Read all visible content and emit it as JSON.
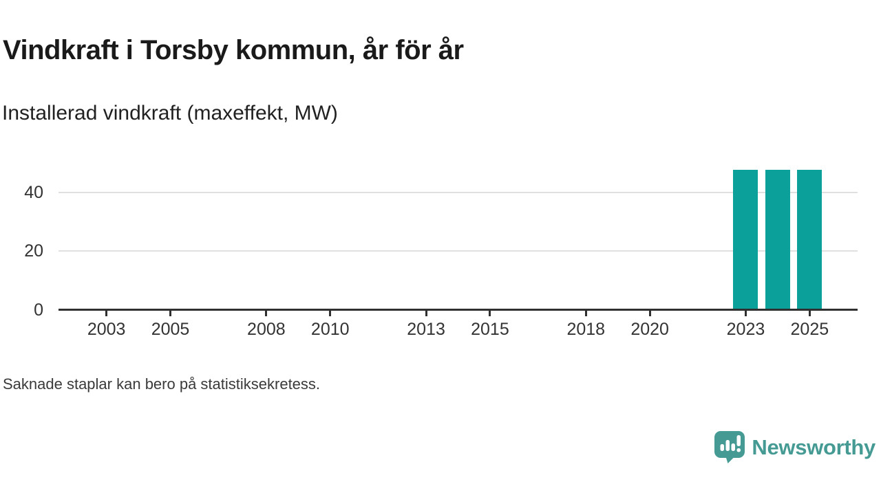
{
  "header": {
    "title": "Vindkraft i Torsby kommun, år för år",
    "subtitle": "Installerad vindkraft (maxeffekt, MW)"
  },
  "footer": {
    "note": "Saknade staplar kan bero på statistiksekretess.",
    "brand_name": "Newsworthy"
  },
  "colors": {
    "bar": "#0ba09a",
    "brand": "#459b94",
    "axis": "#303030",
    "grid": "#e0e0e0",
    "title_text": "#1a1a1a",
    "tick_text": "#333333"
  },
  "chart_data": {
    "type": "bar",
    "title": "Vindkraft i Torsby kommun, år för år",
    "subtitle": "Installerad vindkraft (maxeffekt, MW)",
    "xlabel": "",
    "ylabel": "Installerad vindkraft (maxeffekt, MW)",
    "x_range": [
      2002,
      2026
    ],
    "x_tick_labels": [
      "2003",
      "2005",
      "2008",
      "2010",
      "2013",
      "2015",
      "2018",
      "2020",
      "2023",
      "2025"
    ],
    "y_tick_labels": [
      "0",
      "20",
      "40"
    ],
    "y_gridlines": [
      20,
      40
    ],
    "ylim": [
      0,
      50
    ],
    "grid": "horizontal-only",
    "legend": "none",
    "series": [
      {
        "name": "Installerad vindkraft (maxeffekt, MW)",
        "points": [
          {
            "x": 2023,
            "y": 47.7
          },
          {
            "x": 2024,
            "y": 47.7
          },
          {
            "x": 2025,
            "y": 47.7
          }
        ]
      }
    ],
    "annotation": "Saknade staplar kan bero på statistiksekretess."
  }
}
